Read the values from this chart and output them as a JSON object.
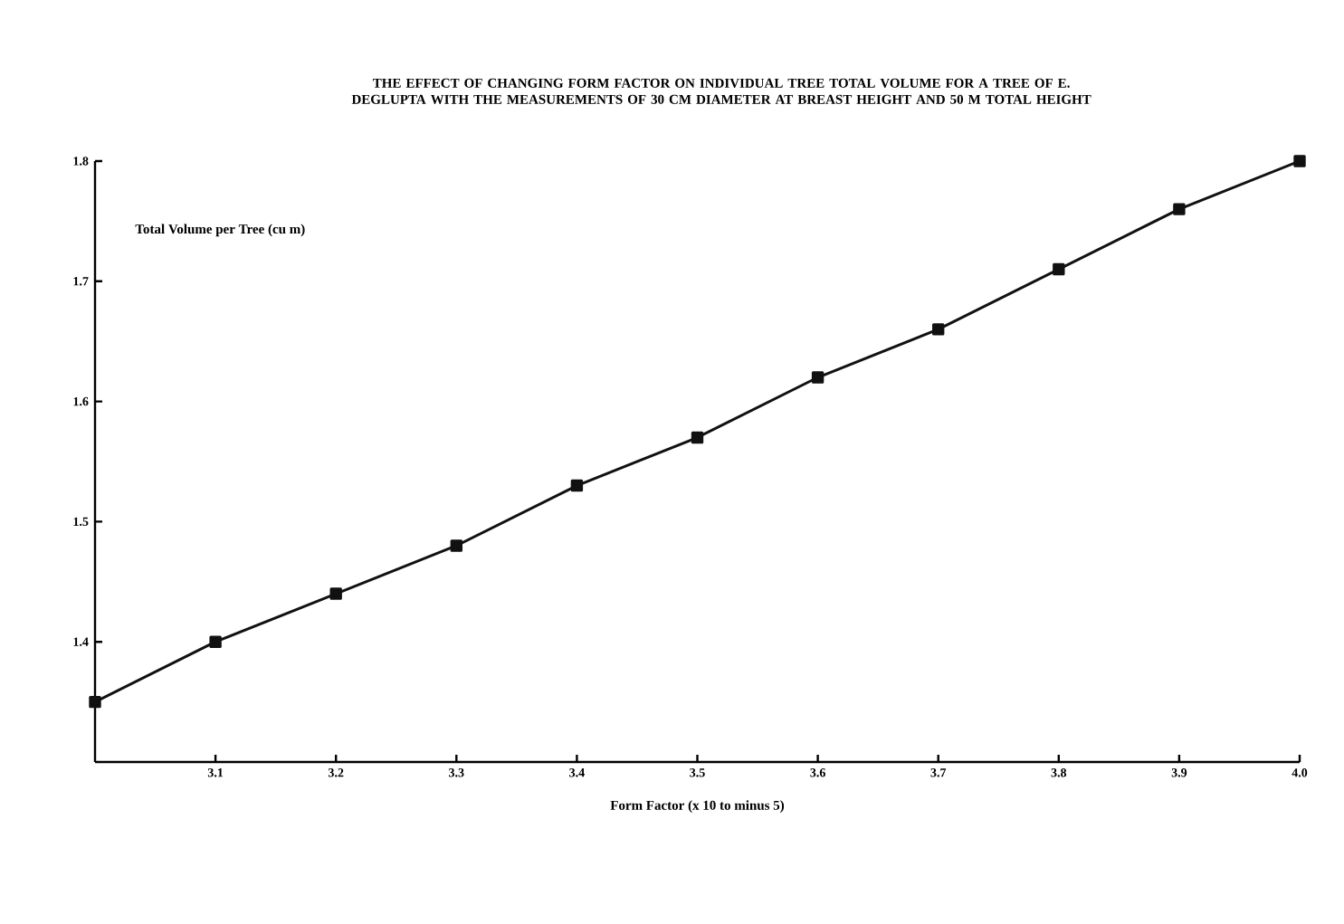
{
  "chart_data": {
    "type": "line",
    "title": "THE EFFECT OF CHANGING FORM FACTOR  ON INDIVIDUAL TREE TOTAL VOLUME FOR A TREE OF E. DEGLUPTA WITH THE MEASUREMENTS OF 30 CM DIAMETER AT BREAST HEIGHT AND 50 M TOTAL HEIGHT",
    "xlabel": "Form Factor (x 10 to minus 5)",
    "ylabel": "Total Volume per Tree (cu m)",
    "x": [
      3.0,
      3.1,
      3.2,
      3.3,
      3.4,
      3.5,
      3.6,
      3.7,
      3.8,
      3.9,
      4.0
    ],
    "values": [
      1.35,
      1.4,
      1.44,
      1.48,
      1.53,
      1.57,
      1.62,
      1.66,
      1.71,
      1.76,
      1.8
    ],
    "color": "#111111",
    "xlim": [
      3.0,
      4.0
    ],
    "xticks": [
      3.1,
      3.2,
      3.3,
      3.4,
      3.5,
      3.6,
      3.7,
      3.8,
      3.9,
      {
        "value": 4.0,
        "label": "4.0"
      }
    ],
    "ylim": [
      1.3,
      1.8
    ],
    "yticks": [
      1.4,
      1.5,
      1.6,
      1.7,
      1.8
    ],
    "marker": "square",
    "line_style": "solid",
    "grid": false
  }
}
